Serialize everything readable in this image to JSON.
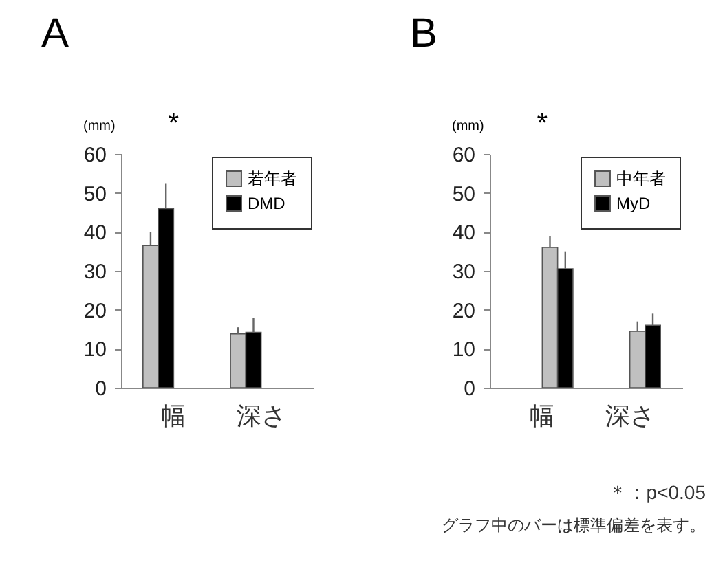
{
  "chart_data": [
    {
      "type": "bar",
      "title": "A",
      "ylabel": "(mm)",
      "categories": [
        "幅",
        "深さ"
      ],
      "ylim": [
        0,
        60
      ],
      "yticks": [
        0,
        10,
        20,
        30,
        40,
        50,
        60
      ],
      "grid": false,
      "legend": "top right",
      "series": [
        {
          "name": "若年者",
          "color": "#c0c0c0",
          "values": [
            36.5,
            13.8
          ],
          "errors": [
            [
              36.5,
              40
            ],
            [
              13.8,
              15.5
            ]
          ]
        },
        {
          "name": "DMD",
          "color": "#000000",
          "values": [
            46,
            14.2
          ],
          "errors": [
            [
              46,
              52.5
            ],
            [
              14.2,
              18
            ]
          ]
        }
      ],
      "annotations": [
        "*"
      ]
    },
    {
      "type": "bar",
      "title": "B",
      "ylabel": "(mm)",
      "categories": [
        "幅",
        "深さ"
      ],
      "ylim": [
        0,
        60
      ],
      "yticks": [
        0,
        10,
        20,
        30,
        40,
        50,
        60
      ],
      "grid": false,
      "legend": "top right",
      "series": [
        {
          "name": "中年者",
          "color": "#c0c0c0",
          "values": [
            36,
            14.5
          ],
          "errors": [
            [
              36,
              39
            ],
            [
              14.5,
              17
            ]
          ]
        },
        {
          "name": "MyD",
          "color": "#000000",
          "values": [
            30.5,
            16
          ],
          "errors": [
            [
              30.5,
              35
            ],
            [
              16,
              19
            ]
          ]
        }
      ],
      "annotations": [
        "*",
        "＊：p<0.05",
        "グラフ中のバーは標準偏差を表す。"
      ]
    }
  ]
}
